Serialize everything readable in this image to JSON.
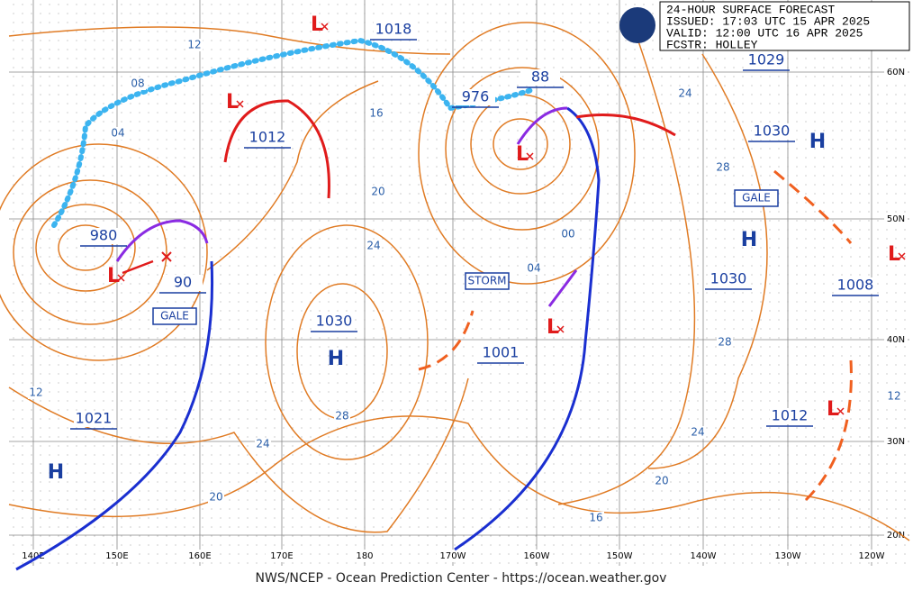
{
  "header": {
    "lines": [
      "24-HOUR SURFACE FORECAST",
      "ISSUED: 17:03 UTC 15 APR 2025",
      "VALID:  12:00 UTC 16 APR 2025",
      "FCSTR:  HOLLEY"
    ]
  },
  "footer": "NWS/NCEP - Ocean Prediction Center - https://ocean.weather.gov",
  "grid": {
    "longitudes": [
      "140E",
      "150E",
      "160E",
      "170E",
      "180",
      "170W",
      "160W",
      "150W",
      "140W",
      "130W",
      "120W"
    ],
    "latitudes": [
      "60N",
      "50N",
      "40N",
      "30N",
      "20N"
    ]
  },
  "pressure_labels": [
    "1018",
    "1012",
    "980",
    "90",
    "1030",
    "1021",
    "976",
    "88",
    "1029",
    "1030",
    "1030",
    "1008",
    "1012",
    "1001"
  ],
  "warnings": [
    "GALE",
    "GALE",
    "STORM"
  ],
  "highs": [
    "H",
    "H",
    "H",
    "H"
  ],
  "lows": [
    "L",
    "L",
    "L",
    "L",
    "L",
    "L",
    "L"
  ],
  "isobar_labels": [
    "12",
    "08",
    "04",
    "16",
    "20",
    "24",
    "28",
    "24",
    "20",
    "16",
    "20",
    "24",
    "28",
    "28",
    "24",
    "00",
    "04",
    "12",
    "12"
  ]
}
